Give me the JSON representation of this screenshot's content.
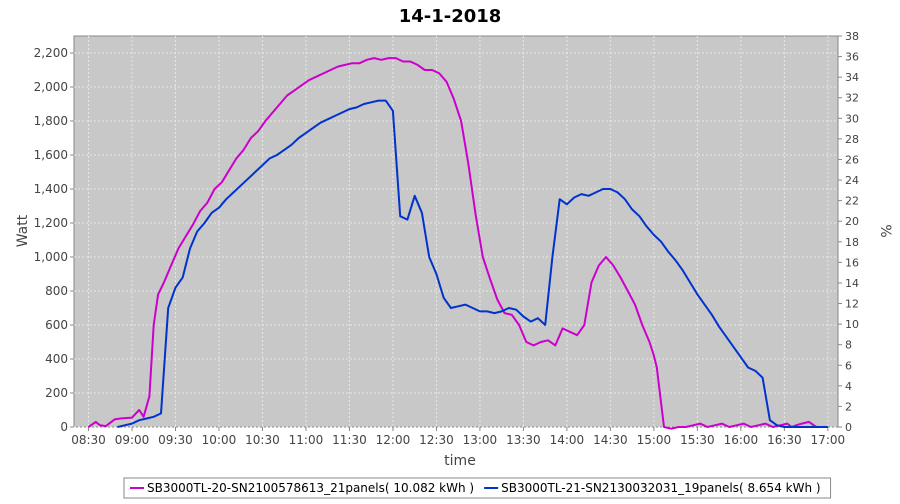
{
  "chart_data": {
    "type": "line",
    "title": "14-1-2018",
    "xlabel": "time",
    "ylabel": "Watt",
    "y2label": "%",
    "ylim": [
      0,
      2300
    ],
    "y2lim": [
      0,
      38
    ],
    "xlim": [
      "08:20",
      "17:07"
    ],
    "grid": true,
    "legend_position": "bottom",
    "x_ticks": [
      "08:30",
      "09:00",
      "09:30",
      "10:00",
      "10:30",
      "11:00",
      "11:30",
      "12:00",
      "12:30",
      "13:00",
      "13:30",
      "14:00",
      "14:30",
      "15:00",
      "15:30",
      "16:00",
      "16:30",
      "17:00"
    ],
    "y_ticks": [
      "0",
      "200",
      "400",
      "600",
      "800",
      "1,000",
      "1,200",
      "1,400",
      "1,600",
      "1,800",
      "2,000",
      "2,200"
    ],
    "y2_ticks": [
      "0",
      "2",
      "4",
      "6",
      "8",
      "10",
      "12",
      "14",
      "16",
      "18",
      "20",
      "22",
      "24",
      "26",
      "28",
      "30",
      "32",
      "34",
      "36",
      "38"
    ],
    "series": [
      {
        "name": "SB3000TL-20-SN2100578613_21panels( 10.082 kWh )",
        "color": "#cc00cc",
        "x": [
          "08:30",
          "08:35",
          "08:38",
          "08:42",
          "08:48",
          "08:52",
          "09:00",
          "09:05",
          "09:08",
          "09:12",
          "09:15",
          "09:18",
          "09:22",
          "09:27",
          "09:32",
          "09:37",
          "09:42",
          "09:47",
          "09:52",
          "09:57",
          "10:02",
          "10:07",
          "10:12",
          "10:17",
          "10:22",
          "10:27",
          "10:32",
          "10:37",
          "10:42",
          "10:47",
          "10:52",
          "10:57",
          "11:02",
          "11:07",
          "11:12",
          "11:17",
          "11:22",
          "11:27",
          "11:32",
          "11:37",
          "11:42",
          "11:47",
          "11:52",
          "11:57",
          "12:02",
          "12:07",
          "12:12",
          "12:17",
          "12:22",
          "12:27",
          "12:32",
          "12:37",
          "12:42",
          "12:47",
          "12:52",
          "12:57",
          "13:02",
          "13:07",
          "13:12",
          "13:17",
          "13:22",
          "13:27",
          "13:32",
          "13:37",
          "13:42",
          "13:47",
          "13:52",
          "13:57",
          "14:02",
          "14:07",
          "14:12",
          "14:17",
          "14:22",
          "14:27",
          "14:32",
          "14:37",
          "14:42",
          "14:47",
          "14:52",
          "14:57",
          "15:00",
          "15:02",
          "15:07",
          "15:12",
          "15:17",
          "15:22",
          "15:27",
          "15:32",
          "15:37",
          "15:42",
          "15:47",
          "15:52",
          "15:57",
          "16:02",
          "16:07",
          "16:12",
          "16:17",
          "16:22",
          "16:27",
          "16:32",
          "16:35",
          "16:38",
          "16:42",
          "16:47",
          "16:52"
        ],
        "values": [
          0,
          30,
          10,
          5,
          45,
          50,
          55,
          100,
          60,
          180,
          600,
          780,
          850,
          950,
          1050,
          1120,
          1190,
          1270,
          1320,
          1400,
          1440,
          1510,
          1580,
          1630,
          1700,
          1740,
          1800,
          1850,
          1900,
          1950,
          1980,
          2010,
          2040,
          2060,
          2080,
          2100,
          2120,
          2130,
          2140,
          2140,
          2160,
          2170,
          2160,
          2170,
          2170,
          2150,
          2150,
          2130,
          2100,
          2100,
          2080,
          2030,
          1930,
          1800,
          1550,
          1250,
          1000,
          870,
          750,
          670,
          660,
          600,
          500,
          480,
          500,
          510,
          480,
          580,
          560,
          540,
          600,
          850,
          950,
          1000,
          950,
          880,
          800,
          720,
          600,
          500,
          420,
          350,
          0,
          -10,
          0,
          0,
          10,
          20,
          0,
          10,
          20,
          0,
          10,
          20,
          0,
          10,
          20,
          0,
          10,
          20,
          0,
          10,
          20,
          30,
          0
        ]
      },
      {
        "name": "SB3000TL-21-SN2130032031_19panels( 8.654 kWh )",
        "color": "#0033cc",
        "x": [
          "08:50",
          "08:55",
          "09:00",
          "09:05",
          "09:10",
          "09:15",
          "09:20",
          "09:25",
          "09:30",
          "09:35",
          "09:40",
          "09:45",
          "09:50",
          "09:55",
          "10:00",
          "10:05",
          "10:10",
          "10:15",
          "10:20",
          "10:25",
          "10:30",
          "10:35",
          "10:40",
          "10:45",
          "10:50",
          "10:55",
          "11:00",
          "11:05",
          "11:10",
          "11:15",
          "11:20",
          "11:25",
          "11:30",
          "11:35",
          "11:40",
          "11:45",
          "11:50",
          "11:55",
          "12:00",
          "12:05",
          "12:10",
          "12:15",
          "12:20",
          "12:25",
          "12:30",
          "12:35",
          "12:40",
          "12:45",
          "12:50",
          "12:55",
          "13:00",
          "13:05",
          "13:10",
          "13:15",
          "13:20",
          "13:25",
          "13:30",
          "13:35",
          "13:40",
          "13:45",
          "13:50",
          "13:55",
          "14:00",
          "14:05",
          "14:10",
          "14:15",
          "14:20",
          "14:25",
          "14:30",
          "14:35",
          "14:40",
          "14:45",
          "14:50",
          "14:55",
          "15:00",
          "15:05",
          "15:10",
          "15:15",
          "15:20",
          "15:25",
          "15:30",
          "15:35",
          "15:40",
          "15:45",
          "15:50",
          "15:55",
          "16:00",
          "16:05",
          "16:10",
          "16:15",
          "16:20",
          "16:25",
          "16:30",
          "16:35",
          "16:40",
          "16:45",
          "16:50",
          "16:55",
          "17:00"
        ],
        "values": [
          0,
          10,
          20,
          40,
          50,
          60,
          80,
          700,
          820,
          880,
          1050,
          1150,
          1200,
          1260,
          1290,
          1340,
          1380,
          1420,
          1460,
          1500,
          1540,
          1580,
          1600,
          1630,
          1660,
          1700,
          1730,
          1760,
          1790,
          1810,
          1830,
          1850,
          1870,
          1880,
          1900,
          1910,
          1920,
          1920,
          1860,
          1240,
          1220,
          1360,
          1260,
          1000,
          900,
          760,
          700,
          710,
          720,
          700,
          680,
          680,
          670,
          680,
          700,
          690,
          650,
          620,
          640,
          600,
          1000,
          1340,
          1310,
          1350,
          1370,
          1360,
          1380,
          1400,
          1400,
          1380,
          1340,
          1280,
          1240,
          1180,
          1130,
          1090,
          1030,
          980,
          920,
          850,
          780,
          720,
          660,
          590,
          530,
          470,
          410,
          350,
          330,
          290,
          40,
          10,
          0,
          0,
          0,
          0,
          0,
          0,
          0
        ]
      }
    ]
  }
}
